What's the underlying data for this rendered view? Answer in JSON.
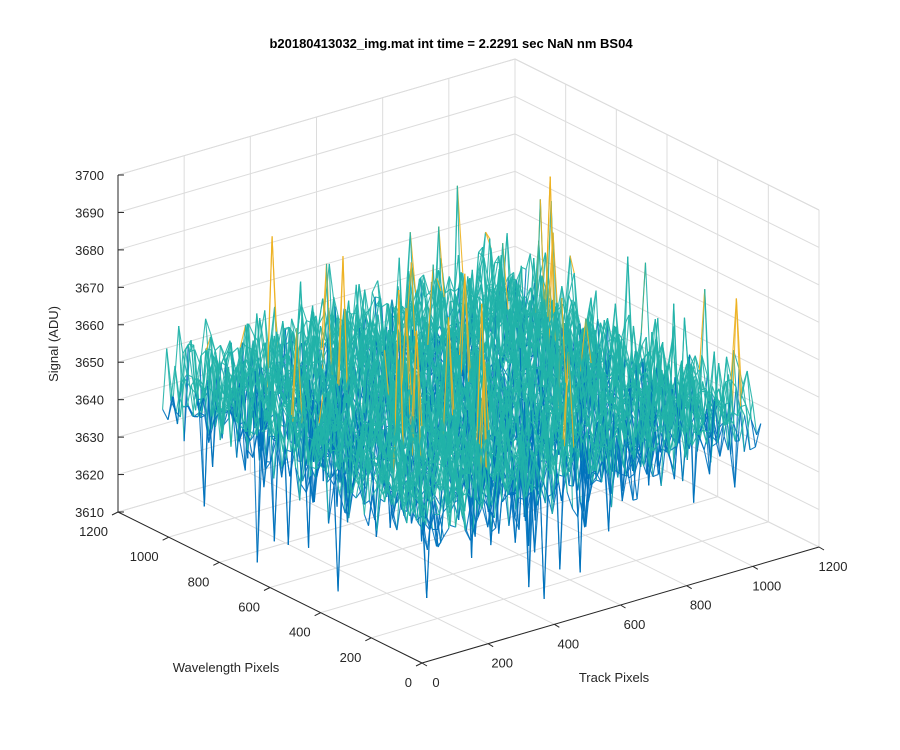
{
  "chart_data": {
    "type": "surface-mesh",
    "title": "b20180413032_img.mat int time = 2.2291 sec  NaN nm BS04",
    "xlabel": "Track Pixels",
    "ylabel": "Wavelength Pixels",
    "zlabel": "Signal (ADU)",
    "xlim": [
      0,
      1200
    ],
    "ylim": [
      0,
      1200
    ],
    "zlim": [
      3610,
      3700
    ],
    "xticks": [
      0,
      200,
      400,
      600,
      800,
      1000,
      1200
    ],
    "yticks": [
      0,
      200,
      400,
      600,
      800,
      1000,
      1200
    ],
    "zticks": [
      3610,
      3620,
      3630,
      3640,
      3650,
      3660,
      3670,
      3680,
      3690,
      3700
    ],
    "data_extent": {
      "x": [
        0,
        1024
      ],
      "y": [
        0,
        1024
      ]
    },
    "signal": {
      "mean": 3650,
      "spread": [
        3615,
        3695
      ]
    },
    "grid": true,
    "view": "isometric (az -37.5, el 30)",
    "colors": {
      "low": "#0072BD",
      "mid": "#21b3a8",
      "high": "#EDB120"
    }
  }
}
